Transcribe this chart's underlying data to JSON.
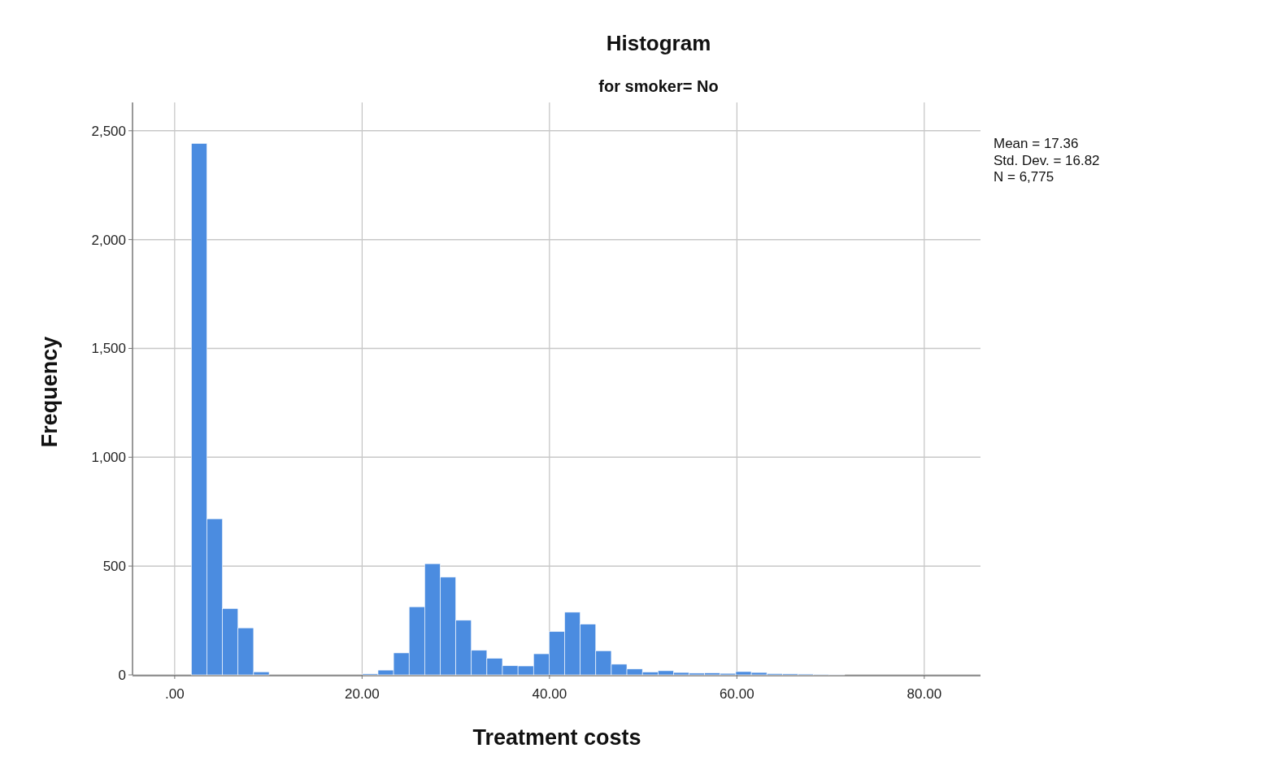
{
  "chart_data": {
    "type": "histogram",
    "title": "Histogram",
    "subtitle": "for smoker= No",
    "xlabel": "Treatment costs",
    "ylabel": "Frequency",
    "annotations": [
      "Mean = 17.36",
      "Std. Dev. = 16.82",
      "N = 6,775"
    ],
    "bins": [
      1.78,
      3.44,
      5.1,
      6.76,
      8.42,
      10.08,
      11.74,
      13.4,
      15.06,
      16.72,
      18.38,
      20.04,
      21.7,
      23.36,
      25.02,
      26.68,
      28.34,
      30.0,
      31.66,
      33.32,
      34.98,
      36.64,
      38.3,
      39.96,
      41.62,
      43.28,
      44.94,
      46.6,
      48.26,
      49.92,
      51.58,
      53.24,
      54.9,
      56.56,
      58.22,
      59.88,
      61.54,
      63.2,
      64.86,
      66.52,
      68.18,
      69.84,
      71.5
    ],
    "values": [
      2442,
      717,
      305,
      216,
      14,
      0,
      0,
      0,
      0,
      0,
      0,
      5,
      22,
      101,
      313,
      511,
      449,
      251,
      113,
      76,
      42,
      41,
      97,
      199,
      288,
      233,
      111,
      49,
      27,
      13,
      19,
      11,
      8,
      9,
      7,
      15,
      11,
      6,
      5,
      4,
      3,
      2
    ],
    "color": "#4b8ce0",
    "xlim": [
      -4.5,
      86
    ],
    "ylim": [
      0,
      2630
    ],
    "xticks": [
      {
        "value": 0,
        "label": ".00"
      },
      {
        "value": 20,
        "label": "20.00"
      },
      {
        "value": 40,
        "label": "40.00"
      },
      {
        "value": 60,
        "label": "60.00"
      },
      {
        "value": 80,
        "label": "80.00"
      }
    ],
    "yticks": [
      0,
      500,
      {
        "value": 1000,
        "label": "1,000"
      },
      {
        "value": 1500,
        "label": "1,500"
      },
      {
        "value": 2000,
        "label": "2,000"
      },
      {
        "value": 2500,
        "label": "2,500"
      }
    ],
    "grid": true
  }
}
